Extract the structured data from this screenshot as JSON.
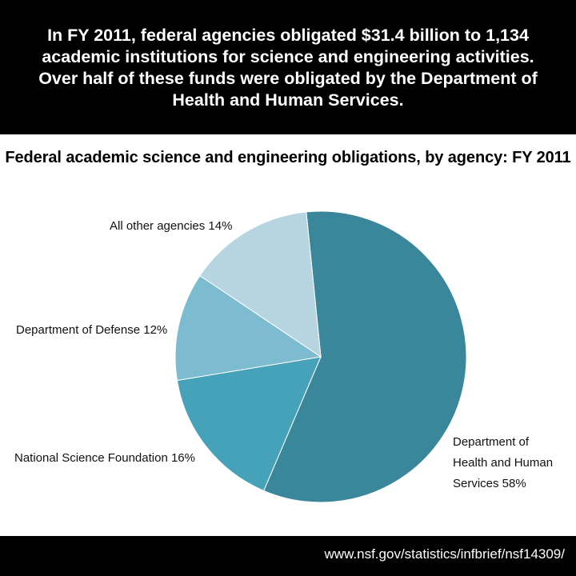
{
  "header": {
    "background": "#000000",
    "lines": [
      "In FY 2011, federal agencies obligated $31.4 billion to 1,134",
      "academic institutions for science and engineering activities.",
      "Over half of these funds were obligated by the Department of",
      "Health and Human Services."
    ]
  },
  "chart_data": {
    "type": "pie",
    "title": "Federal academic science and engineering obligations, by agency: FY 2011",
    "slices": [
      {
        "label_lines": [
          "Department of",
          "Health and Human",
          "Services 58%"
        ],
        "value": 58,
        "color": "#3a869a"
      },
      {
        "label_lines": [
          "National Science Foundation 16%"
        ],
        "value": 16,
        "color": "#46a2b9"
      },
      {
        "label_lines": [
          "Department of Defense 12%"
        ],
        "value": 12,
        "color": "#7dbcd0"
      },
      {
        "label_lines": [
          "All other agencies  14%"
        ],
        "value": 14,
        "color": "#b7d5e1"
      }
    ]
  },
  "footer": {
    "source": "www.nsf.gov/statistics/infbrief/nsf14309/"
  }
}
